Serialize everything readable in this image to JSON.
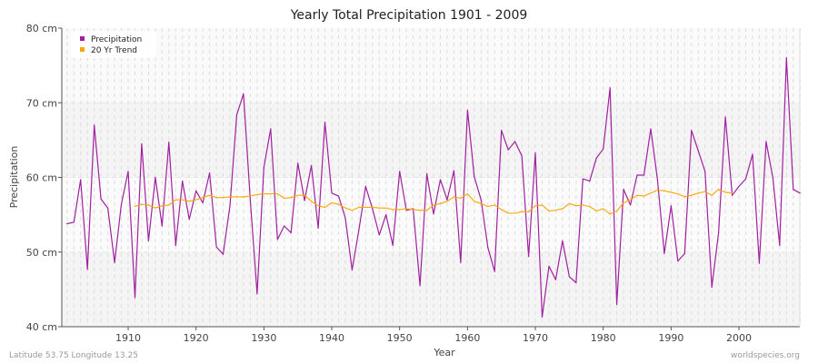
{
  "chart_data": {
    "type": "line",
    "title": "Yearly Total Precipitation 1901 - 2009",
    "xlabel": "Year",
    "ylabel": "Precipitation",
    "xlim": [
      1901,
      2009
    ],
    "ylim": [
      40,
      80
    ],
    "x_ticks": [
      1910,
      1920,
      1930,
      1940,
      1950,
      1960,
      1970,
      1980,
      1990,
      2000
    ],
    "y_ticks": [
      40,
      50,
      60,
      70,
      80
    ],
    "y_tick_labels": [
      "40 cm",
      "50 cm",
      "60 cm",
      "70 cm",
      "80 cm"
    ],
    "grid": true,
    "legend_position": "top-left",
    "series": [
      {
        "name": "Precipitation",
        "color": "#a020a0",
        "x_start": 1901,
        "values": [
          53.8,
          54.0,
          59.7,
          47.7,
          67.0,
          57.1,
          55.9,
          48.6,
          56.4,
          60.8,
          43.9,
          64.5,
          51.5,
          60.0,
          53.5,
          64.7,
          50.9,
          59.5,
          54.4,
          58.2,
          56.6,
          60.6,
          50.7,
          49.7,
          56.2,
          68.4,
          71.2,
          56.9,
          44.4,
          61.3,
          66.5,
          51.7,
          53.5,
          52.6,
          61.9,
          56.9,
          61.6,
          53.2,
          67.4,
          57.9,
          57.5,
          54.6,
          47.6,
          53.0,
          58.8,
          55.8,
          52.3,
          55.0,
          50.9,
          60.8,
          55.6,
          55.8,
          45.5,
          60.5,
          55.1,
          59.7,
          57.0,
          60.9,
          48.6,
          69.0,
          60.1,
          57.0,
          50.6,
          47.4,
          66.3,
          63.7,
          64.8,
          62.9,
          49.4,
          63.3,
          41.3,
          48.1,
          46.3,
          51.5,
          46.7,
          45.9,
          59.8,
          59.5,
          62.6,
          63.8,
          72.0,
          43.0,
          58.4,
          56.3,
          60.3,
          60.3,
          66.5,
          59.7,
          49.8,
          56.2,
          48.8,
          49.8,
          66.3,
          63.6,
          60.8,
          45.3,
          52.6,
          68.1,
          57.6,
          58.8,
          59.8,
          63.1,
          48.5,
          64.8,
          59.9,
          50.9,
          76.0,
          58.4,
          57.9
        ]
      },
      {
        "name": "20 Yr Trend",
        "color": "#ffa500",
        "x_start": 1911,
        "values": [
          56.1,
          56.4,
          56.3,
          55.9,
          56.2,
          56.3,
          57.0,
          57.0,
          56.8,
          57.0,
          57.3,
          57.6,
          57.3,
          57.3,
          57.4,
          57.4,
          57.4,
          57.5,
          57.7,
          57.8,
          57.8,
          57.8,
          57.2,
          57.3,
          57.6,
          57.6,
          56.8,
          56.2,
          56.0,
          56.6,
          56.4,
          55.9,
          55.6,
          56.0,
          56.0,
          56.0,
          55.9,
          55.9,
          55.7,
          55.7,
          55.8,
          55.7,
          55.6,
          55.6,
          56.3,
          56.5,
          56.8,
          57.4,
          57.2,
          57.8,
          56.8,
          56.5,
          56.1,
          56.3,
          55.7,
          55.2,
          55.2,
          55.4,
          55.4,
          56.2,
          56.3,
          55.5,
          55.6,
          55.8,
          56.5,
          56.2,
          56.3,
          56.1,
          55.5,
          55.8,
          55.1,
          55.5,
          56.6,
          57.0,
          57.6,
          57.5,
          57.9,
          58.3,
          58.2,
          58.0,
          57.8,
          57.4,
          57.6,
          57.9,
          58.1,
          57.6,
          58.4,
          58.0,
          57.9
        ]
      }
    ]
  },
  "footer": {
    "left": "Latitude 53.75 Longitude 13.25",
    "right": "worldspecies.org"
  }
}
